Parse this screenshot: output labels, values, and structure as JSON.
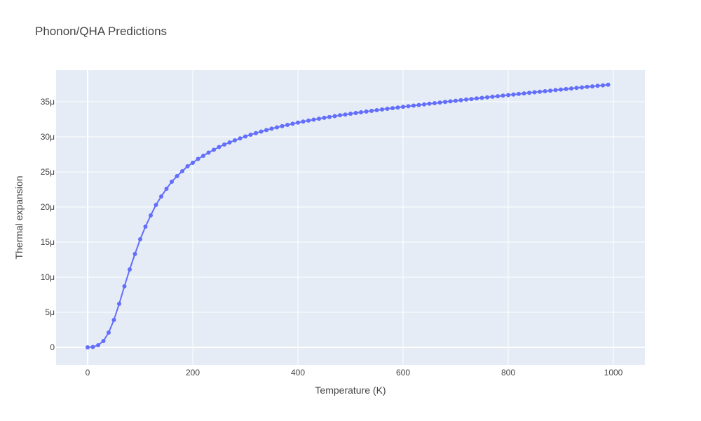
{
  "chart_data": {
    "type": "line",
    "title": "Phonon/QHA Predictions",
    "xlabel": "Temperature (K)",
    "ylabel": "Thermal expansion",
    "xlim": [
      -60,
      1060
    ],
    "ylim": [
      -2.5e-06,
      3.95e-05
    ],
    "x_ticks": [
      0,
      200,
      400,
      600,
      800,
      1000
    ],
    "x_tick_labels": [
      "0",
      "200",
      "400",
      "600",
      "800",
      "1000"
    ],
    "y_ticks": [
      0,
      5e-06,
      1e-05,
      1.5e-05,
      2e-05,
      2.5e-05,
      3e-05,
      3.5e-05
    ],
    "y_tick_labels": [
      "0",
      "5μ",
      "10μ",
      "15μ",
      "20μ",
      "25μ",
      "30μ",
      "35μ"
    ],
    "grid": true,
    "colors": {
      "plot_bg": "#e5ecf6",
      "grid": "#ffffff",
      "series": "#636efa"
    },
    "series": [
      {
        "mode": "lines+markers",
        "x": [
          0,
          10,
          20,
          30,
          40,
          50,
          60,
          70,
          80,
          90,
          100,
          110,
          120,
          130,
          140,
          150,
          160,
          170,
          180,
          190,
          200,
          210,
          220,
          230,
          240,
          250,
          260,
          270,
          280,
          290,
          300,
          310,
          320,
          330,
          340,
          350,
          360,
          370,
          380,
          390,
          400,
          410,
          420,
          430,
          440,
          450,
          460,
          470,
          480,
          490,
          500,
          510,
          520,
          530,
          540,
          550,
          560,
          570,
          580,
          590,
          600,
          610,
          620,
          630,
          640,
          650,
          660,
          670,
          680,
          690,
          700,
          710,
          720,
          730,
          740,
          750,
          760,
          770,
          780,
          790,
          800,
          810,
          820,
          830,
          840,
          850,
          860,
          870,
          880,
          890,
          900,
          910,
          920,
          930,
          940,
          950,
          960,
          970,
          980,
          990
        ],
        "y": [
          0,
          5e-08,
          3e-07,
          9e-07,
          2.1e-06,
          3.9e-06,
          6.2e-06,
          8.7e-06,
          1.11e-05,
          1.33e-05,
          1.54e-05,
          1.72e-05,
          1.88e-05,
          2.03e-05,
          2.15e-05,
          2.26e-05,
          2.36e-05,
          2.44e-05,
          2.51e-05,
          2.58e-05,
          2.63e-05,
          2.685e-05,
          2.73e-05,
          2.775e-05,
          2.815e-05,
          2.855e-05,
          2.89e-05,
          2.92e-05,
          2.95e-05,
          2.978e-05,
          3.005e-05,
          3.03e-05,
          3.053e-05,
          3.075e-05,
          3.096e-05,
          3.116e-05,
          3.135e-05,
          3.153e-05,
          3.17e-05,
          3.186e-05,
          3.202e-05,
          3.217e-05,
          3.231e-05,
          3.245e-05,
          3.258e-05,
          3.271e-05,
          3.283e-05,
          3.295e-05,
          3.307e-05,
          3.318e-05,
          3.329e-05,
          3.34e-05,
          3.35e-05,
          3.36e-05,
          3.37e-05,
          3.38e-05,
          3.39e-05,
          3.4e-05,
          3.409e-05,
          3.418e-05,
          3.427e-05,
          3.436e-05,
          3.445e-05,
          3.454e-05,
          3.463e-05,
          3.472e-05,
          3.48e-05,
          3.489e-05,
          3.497e-05,
          3.506e-05,
          3.514e-05,
          3.522e-05,
          3.531e-05,
          3.539e-05,
          3.547e-05,
          3.555e-05,
          3.563e-05,
          3.571e-05,
          3.579e-05,
          3.587e-05,
          3.595e-05,
          3.603e-05,
          3.611e-05,
          3.619e-05,
          3.627e-05,
          3.635e-05,
          3.643e-05,
          3.65e-05,
          3.658e-05,
          3.666e-05,
          3.674e-05,
          3.681e-05,
          3.689e-05,
          3.697e-05,
          3.704e-05,
          3.712e-05,
          3.719e-05,
          3.727e-05,
          3.734e-05,
          3.742e-05
        ]
      }
    ]
  }
}
